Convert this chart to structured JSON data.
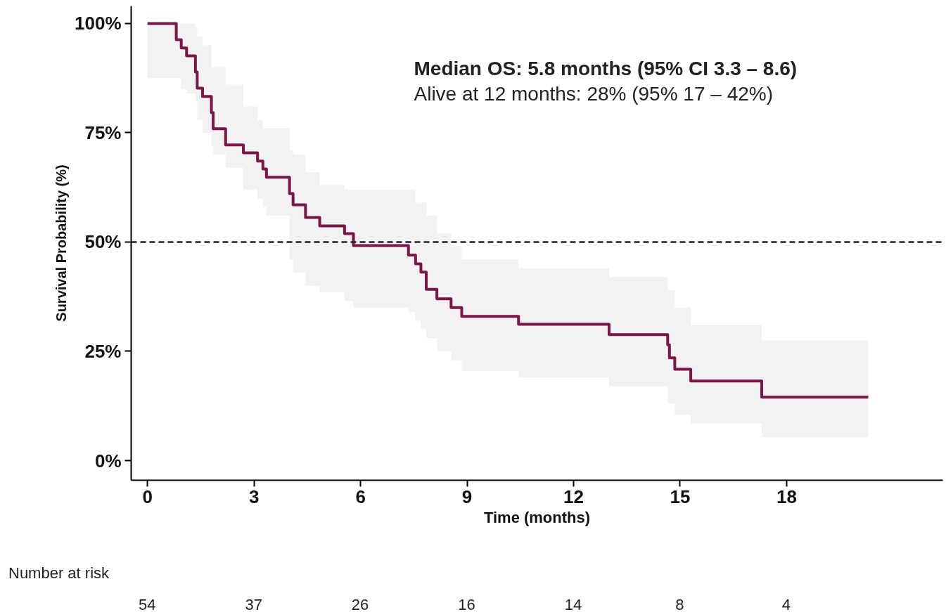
{
  "chart_data": {
    "type": "step",
    "xlabel": "Time (months)",
    "ylabel": "Survival Probability (%)",
    "xlim": [
      -0.46,
      22.4
    ],
    "ylim": [
      -4.5,
      104
    ],
    "xticks": [
      0,
      3,
      6,
      9,
      12,
      15,
      18
    ],
    "yticks": [
      {
        "value": 0,
        "label": "0%"
      },
      {
        "value": 25,
        "label": "25%"
      },
      {
        "value": 50,
        "label": "50%"
      },
      {
        "value": 75,
        "label": "75%"
      },
      {
        "value": 100,
        "label": "100%"
      }
    ],
    "grid": false,
    "marker": "none",
    "line_style": "solid",
    "series": [
      {
        "color": "#7b1746",
        "x": [
          0,
          0.81,
          0.95,
          1.1,
          1.35,
          1.4,
          1.55,
          1.8,
          1.85,
          2.2,
          2.7,
          3.1,
          3.25,
          3.35,
          4.0,
          4.1,
          4.45,
          4.85,
          5.55,
          5.8,
          7.35,
          7.55,
          7.7,
          7.85,
          8.15,
          8.55,
          8.85,
          10.45,
          13.0,
          14.65,
          14.7,
          14.85,
          15.3,
          17.3,
          20.3
        ],
        "values": [
          100,
          96.3,
          94.4,
          92.6,
          88.9,
          85.2,
          83.3,
          79.6,
          75.9,
          72.2,
          70.4,
          68.5,
          66.7,
          64.8,
          61.1,
          58.5,
          55.6,
          53.7,
          51.9,
          49.2,
          47.0,
          45.0,
          43.1,
          39.2,
          37.0,
          35.0,
          33.0,
          31.2,
          28.8,
          26.5,
          23.5,
          20.9,
          18.2,
          14.5,
          14.5
        ],
        "upper": [
          100,
          100,
          100,
          100,
          99,
          97,
          95,
          90,
          90,
          86,
          81,
          78,
          76,
          76,
          71,
          70,
          66,
          63,
          62,
          62,
          62,
          59,
          59,
          56,
          52,
          49,
          46,
          44,
          42,
          39,
          39,
          35,
          31,
          27.5,
          27.5
        ],
        "lower": [
          87.5,
          87.5,
          85,
          84,
          82,
          78,
          75,
          72,
          70,
          67,
          62,
          60,
          58,
          56,
          46,
          43,
          40,
          38.5,
          36.5,
          35,
          34,
          32,
          30,
          28,
          25,
          23,
          20.5,
          19,
          17,
          13,
          13,
          10.5,
          8.5,
          5.3,
          5.3
        ]
      }
    ],
    "ref_lines": [
      {
        "axis": "y",
        "value": 50,
        "color": "#222222",
        "line_style": "dashed"
      }
    ],
    "annotations": [
      "Median OS: 5.8 months (95% CI 3.3 – 8.6)",
      "Alive at 12 months: 28% (95% 17 – 42%)",
      "Number at risk",
      "54",
      "37",
      "26",
      "16",
      "14",
      "8",
      "4"
    ]
  }
}
